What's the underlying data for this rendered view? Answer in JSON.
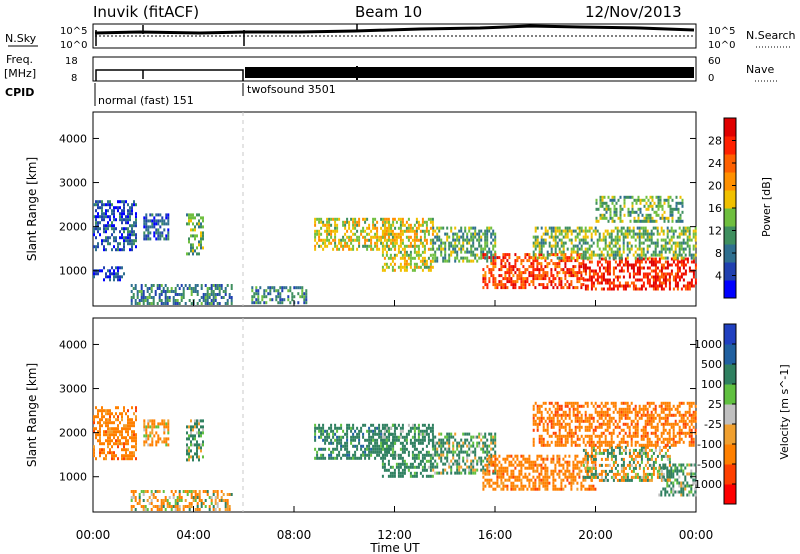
{
  "header": {
    "station": "Inuvik (fitACF)",
    "beam": "Beam 10",
    "date": "12/Nov/2013"
  },
  "noise_panel": {
    "left_label": "N.Sky",
    "right_label": "N.Search",
    "tick_top": "10^5",
    "tick_bottom": "10^0"
  },
  "freq_panel": {
    "left_label_line1": "Freq.",
    "left_label_line2": "[MHz]",
    "left_tick_top": "18",
    "left_tick_bottom": "8",
    "right_label": "Nave",
    "right_tick_top": "60",
    "right_tick_bottom": "0"
  },
  "cpid": {
    "label": "CPID",
    "segments": [
      {
        "name": "normal (fast) 151",
        "start_ut": 0.0,
        "end_ut": 6.0
      },
      {
        "name": "twofsound 3501",
        "start_ut": 6.0,
        "end_ut": 24.0
      }
    ]
  },
  "colors": {
    "power_scale": [
      "#0000ff",
      "#2040b0",
      "#2f6f8f",
      "#3f8f5f",
      "#6fbf3f",
      "#f0c000",
      "#ff9000",
      "#ff6000",
      "#ff2000",
      "#e00000"
    ],
    "velocity_scale": [
      "#2040c0",
      "#2060a0",
      "#2f8060",
      "#60c040",
      "#c0c0c0",
      "#f0a030",
      "#ff8000",
      "#ff4000",
      "#ff0000"
    ]
  },
  "chart_data": [
    {
      "type": "heatmap",
      "name": "power",
      "ylabel": "Slant Range [km]",
      "xlabel": "Time UT",
      "xlim": [
        0,
        24
      ],
      "ylim": [
        200,
        4600
      ],
      "x_ticks": [
        "00:00",
        "04:00",
        "08:00",
        "12:00",
        "16:00",
        "20:00",
        "00:00"
      ],
      "y_ticks": [
        "1000",
        "2000",
        "3000",
        "4000"
      ],
      "colorbar": {
        "label": "Power [dB]",
        "ticks": [
          "4",
          "8",
          "12",
          "16",
          "20",
          "24",
          "28"
        ],
        "range": [
          0,
          32
        ]
      },
      "regions": [
        {
          "t0": 0.0,
          "t1": 1.7,
          "r0": 1500,
          "r1": 2600,
          "level": 6
        },
        {
          "t0": 0.0,
          "t1": 1.2,
          "r0": 800,
          "r1": 1100,
          "level": 4
        },
        {
          "t0": 2.0,
          "t1": 3.0,
          "r0": 1700,
          "r1": 2300,
          "level": 7
        },
        {
          "t0": 3.7,
          "t1": 4.4,
          "r0": 1400,
          "r1": 2300,
          "level": 13
        },
        {
          "t0": 1.5,
          "t1": 5.5,
          "r0": 250,
          "r1": 700,
          "level": 9
        },
        {
          "t0": 6.3,
          "t1": 8.5,
          "r0": 250,
          "r1": 650,
          "level": 10
        },
        {
          "t0": 8.8,
          "t1": 12.0,
          "r0": 1500,
          "r1": 2200,
          "level": 16
        },
        {
          "t0": 11.5,
          "t1": 13.5,
          "r0": 1000,
          "r1": 2200,
          "level": 17
        },
        {
          "t0": 13.5,
          "t1": 16.0,
          "r0": 1200,
          "r1": 2000,
          "level": 12
        },
        {
          "t0": 15.5,
          "t1": 19.5,
          "r0": 600,
          "r1": 1400,
          "level": 26
        },
        {
          "t0": 19.5,
          "t1": 24.0,
          "r0": 600,
          "r1": 1300,
          "level": 28
        },
        {
          "t0": 17.5,
          "t1": 24.0,
          "r0": 1300,
          "r1": 2000,
          "level": 14
        },
        {
          "t0": 20.0,
          "t1": 23.5,
          "r0": 2100,
          "r1": 2700,
          "level": 13
        }
      ]
    },
    {
      "type": "heatmap",
      "name": "velocity",
      "ylabel": "Slant Range [km]",
      "xlabel": "Time UT",
      "xlim": [
        0,
        24
      ],
      "ylim": [
        200,
        4600
      ],
      "x_ticks": [
        "00:00",
        "04:00",
        "08:00",
        "12:00",
        "16:00",
        "20:00",
        "00:00"
      ],
      "y_ticks": [
        "1000",
        "2000",
        "3000",
        "4000"
      ],
      "colorbar": {
        "label": "Velocity [m s^-1]",
        "ticks": [
          "1000",
          "500",
          "100",
          "25",
          "-25",
          "-100",
          "-500",
          "-1000"
        ],
        "range": [
          -1200,
          1200
        ]
      },
      "regions": [
        {
          "t0": 0.0,
          "t1": 1.7,
          "r0": 1400,
          "r1": 2600,
          "level": -300
        },
        {
          "t0": 2.0,
          "t1": 3.0,
          "r0": 1700,
          "r1": 2300,
          "level": -150
        },
        {
          "t0": 3.7,
          "t1": 4.4,
          "r0": 1400,
          "r1": 2300,
          "level": 150
        },
        {
          "t0": 1.5,
          "t1": 5.5,
          "r0": 250,
          "r1": 700,
          "level": -80
        },
        {
          "t0": 8.8,
          "t1": 12.0,
          "r0": 1400,
          "r1": 2200,
          "level": 300
        },
        {
          "t0": 11.5,
          "t1": 13.5,
          "r0": 1000,
          "r1": 2200,
          "level": 250
        },
        {
          "t0": 13.5,
          "t1": 16.0,
          "r0": 1100,
          "r1": 2000,
          "level": 150
        },
        {
          "t0": 15.5,
          "t1": 20.0,
          "r0": 700,
          "r1": 1500,
          "level": -300
        },
        {
          "t0": 19.5,
          "t1": 23.0,
          "r0": 900,
          "r1": 1700,
          "level": 0
        },
        {
          "t0": 22.5,
          "t1": 24.0,
          "r0": 600,
          "r1": 1300,
          "level": 200
        },
        {
          "t0": 17.5,
          "t1": 24.0,
          "r0": 1700,
          "r1": 2700,
          "level": -350
        }
      ]
    }
  ],
  "time_axis": {
    "label": "Time UT",
    "ticks": [
      "00:00",
      "04:00",
      "08:00",
      "12:00",
      "16:00",
      "20:00",
      "00:00"
    ]
  }
}
